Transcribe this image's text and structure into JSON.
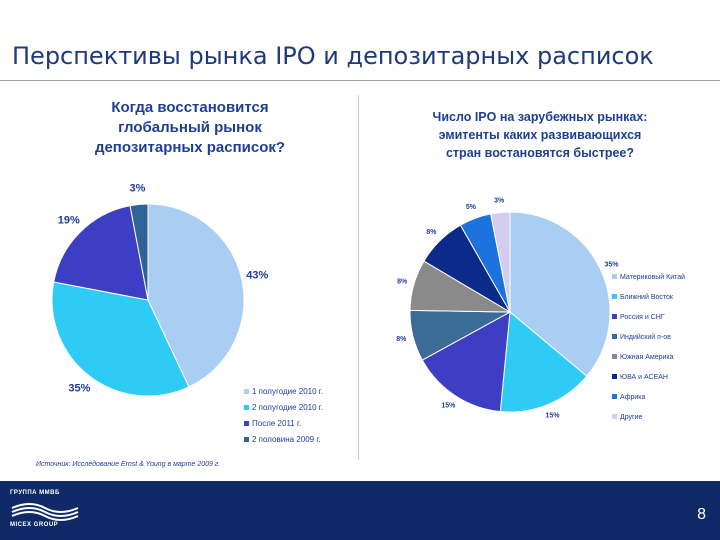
{
  "page": {
    "title": "Перспективы рынка IPO и депозитарных расписок",
    "source": "Источник: Исследование Ernst & Young в марте 2009 г.",
    "page_number": "8",
    "logo_top": "ГРУППА ММВБ",
    "logo_bottom": "MICEX GROUP"
  },
  "chart_data": [
    {
      "type": "pie",
      "title": "Когда восстановится\nглобальный рынок\nдепозитарных расписок?",
      "categories": [
        "1 полугодие 2010 г.",
        "2 полугодие 2010 г.",
        "После 2011 г.",
        "2 половина 2009 г."
      ],
      "values": [
        43,
        35,
        19,
        3
      ],
      "labels": [
        "43%",
        "35%",
        "19%",
        "3%"
      ],
      "colors": [
        "#a9cdf3",
        "#2ecbf5",
        "#3c3ec4",
        "#2f6596"
      ],
      "legend_position": "bottom-right"
    },
    {
      "type": "pie",
      "title": "Число IPO на зарубежных рынках:\nэмитенты каких развивающихся\nстран востановятся быстрее?",
      "categories": [
        "Материковый Китай",
        "Ближний Восток",
        "Россия и СНГ",
        "Индийский п-ов",
        "Южная Америка",
        "ЮВА и АСЕАН",
        "Африка",
        "Другие"
      ],
      "values": [
        35,
        15,
        15,
        8,
        8,
        8,
        5,
        3
      ],
      "labels": [
        "35%",
        "15%",
        "15%",
        "8%",
        "8%",
        "8%",
        "5%",
        "3%"
      ],
      "colors": [
        "#a9cdf3",
        "#2ecbf5",
        "#3c3ec4",
        "#3b6b96",
        "#8a8a8a",
        "#0b2a8a",
        "#1d73de",
        "#d4cdf2"
      ],
      "legend_position": "right"
    }
  ]
}
